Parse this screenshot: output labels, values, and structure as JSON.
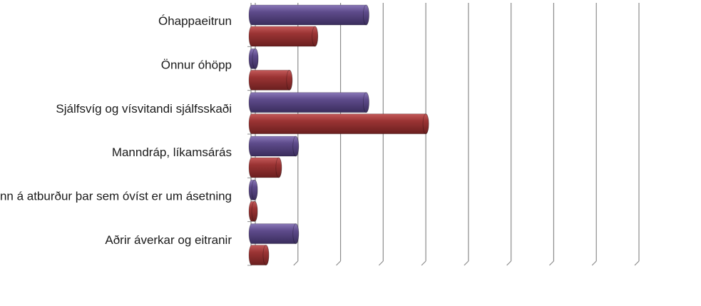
{
  "chart_data": {
    "type": "bar",
    "orientation": "horizontal",
    "style": "3d-cylinder",
    "categories": [
      "Óhappaeitrun",
      "Önnur óhöpp",
      "Sjálfsvíg og vísvitandi sjálfsskaði",
      "Manndráp, líkamsárás",
      "Áverki, tilkominn á atburður þar sem óvíst er um ásetning",
      "Aðrir áverkar og eitranir"
    ],
    "series": [
      {
        "color": "#5e4b8b",
        "values": [
          2.7,
          0.1,
          2.7,
          1.05,
          0.08,
          1.05
        ]
      },
      {
        "color": "#9b3434",
        "values": [
          1.5,
          0.9,
          4.1,
          0.65,
          0.05,
          0.35
        ]
      }
    ],
    "xlim": [
      0,
      9
    ],
    "grid": true,
    "axis_tick_labels_visible": false
  }
}
